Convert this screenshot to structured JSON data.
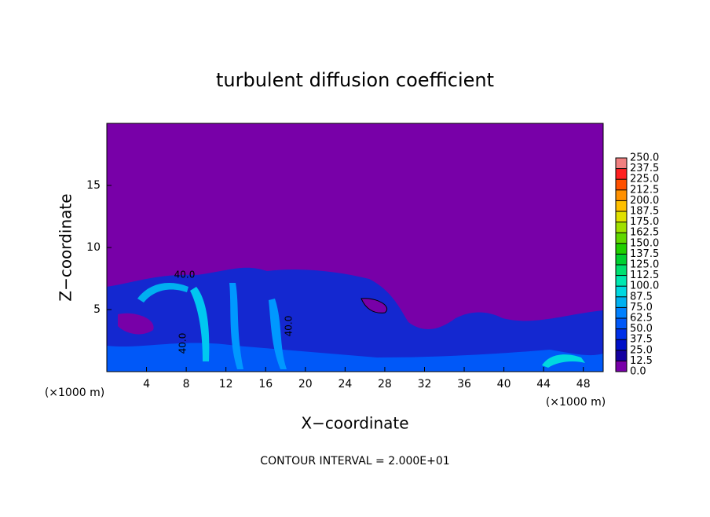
{
  "chart_data": {
    "type": "contour",
    "title": "turbulent diffusion coefficient",
    "x_label": "X−coordinate",
    "y_label": "Z−coordinate",
    "x_unit_left": "(×1000 m)",
    "x_unit_right": "(×1000 m)",
    "footer": "CONTOUR INTERVAL = 2.000E+01",
    "annotations": [
      "40.0",
      "40.0",
      "40.0"
    ],
    "xlim": [
      0,
      50
    ],
    "xticks": [
      4,
      8,
      12,
      16,
      20,
      24,
      28,
      32,
      36,
      40,
      44,
      48
    ],
    "ylim": [
      0,
      20
    ],
    "yticks": [
      5,
      10,
      15
    ],
    "colorbar": {
      "levels": [
        {
          "value": 0,
          "label": "0.0"
        },
        {
          "value": 12.5,
          "label": "12.5"
        },
        {
          "value": 25,
          "label": "25.0"
        },
        {
          "value": 37.5,
          "label": "37.5"
        },
        {
          "value": 50,
          "label": "50.0"
        },
        {
          "value": 62.5,
          "label": "62.5"
        },
        {
          "value": 75,
          "label": "75.0"
        },
        {
          "value": 87.5,
          "label": "87.5"
        },
        {
          "value": 100,
          "label": "100.0"
        },
        {
          "value": 112.5,
          "label": "112.5"
        },
        {
          "value": 125,
          "label": "125.0"
        },
        {
          "value": 137.5,
          "label": "137.5"
        },
        {
          "value": 150,
          "label": "150.0"
        },
        {
          "value": 162.5,
          "label": "162.5"
        },
        {
          "value": 175,
          "label": "175.0"
        },
        {
          "value": 187.5,
          "label": "187.5"
        },
        {
          "value": 200,
          "label": "200.0"
        },
        {
          "value": 212.5,
          "label": "212.5"
        },
        {
          "value": 225,
          "label": "225.0"
        },
        {
          "value": 237.5,
          "label": "237.5"
        },
        {
          "value": 250,
          "label": "250.0"
        }
      ],
      "colors": [
        "#7800a8",
        "#1400a0",
        "#0010c8",
        "#0030e8",
        "#0058f8",
        "#0080ff",
        "#00b0f0",
        "#00d8e0",
        "#00e8b0",
        "#00e070",
        "#00d030",
        "#20d000",
        "#60d800",
        "#a0e000",
        "#e0e000",
        "#ffc000",
        "#ff9000",
        "#ff5000",
        "#ff2020",
        "#f08080"
      ]
    }
  }
}
